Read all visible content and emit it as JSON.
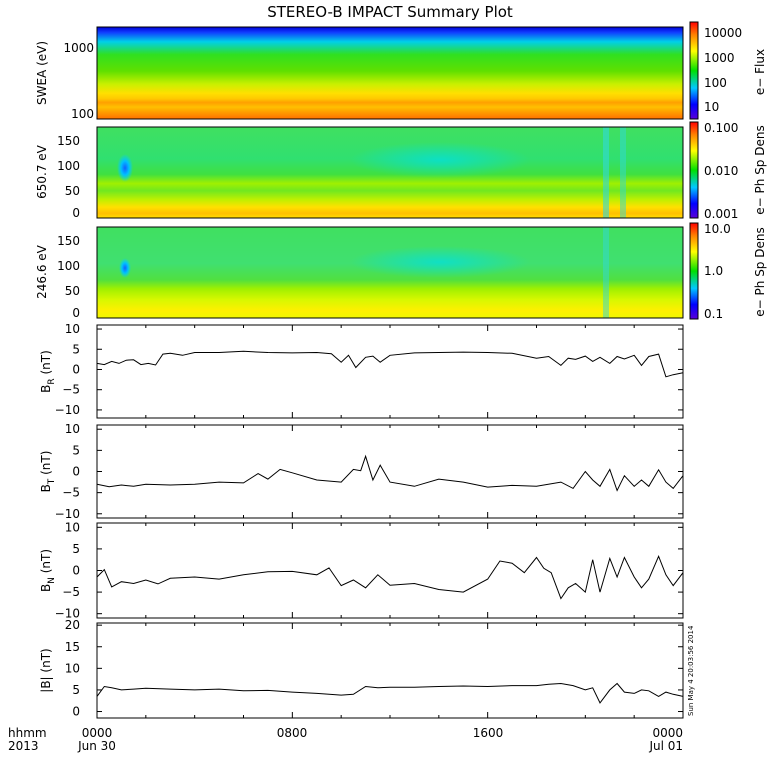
{
  "title": "STEREO-B IMPACT Summary Plot",
  "footer": {
    "left_top": "hhmm",
    "left_bottom": "2013",
    "x_ticks": [
      {
        "top": "0000",
        "bottom": "Jun 30"
      },
      {
        "top": "0800",
        "bottom": ""
      },
      {
        "top": "1600",
        "bottom": ""
      },
      {
        "top": "0000",
        "bottom": "Jul 01"
      }
    ]
  },
  "stamp": "Sun May  4 20:03:56 2014",
  "chart_data": [
    {
      "type": "heatmap",
      "ylabel": "SWEA (eV)",
      "yscale": "log",
      "yticks": [
        "1000",
        "100"
      ],
      "colorbar": {
        "label": "e− Flux",
        "scale": "log",
        "ticks": [
          "10000",
          "1000",
          "100",
          "10"
        ],
        "range": [
          3,
          20000
        ]
      }
    },
    {
      "type": "heatmap",
      "ylabel": "650.7 eV",
      "ylim": [
        0,
        180
      ],
      "yticks": [
        "0",
        "50",
        "100",
        "150"
      ],
      "colorbar": {
        "label": "e− Ph Sp Dens",
        "scale": "log",
        "ticks": [
          "0.100",
          "0.010",
          "0.001"
        ],
        "range": [
          0.001,
          0.1
        ]
      }
    },
    {
      "type": "heatmap",
      "ylabel": "246.6 eV",
      "ylim": [
        0,
        180
      ],
      "yticks": [
        "0",
        "50",
        "100",
        "150"
      ],
      "colorbar": {
        "label": "e− Ph Sp Dens",
        "scale": "log",
        "ticks": [
          "10.0",
          "1.0",
          "0.1"
        ],
        "range": [
          0.1,
          10
        ]
      }
    },
    {
      "type": "line",
      "ylabel_main": "B",
      "ylabel_sub": "R",
      "ylabel_unit": " (nT)",
      "ylim": [
        -12,
        11
      ],
      "yticks": [
        "10",
        "5",
        "0",
        "−5",
        "−10"
      ],
      "xlim_hours": [
        0,
        24
      ],
      "x": [
        0,
        0.3,
        0.6,
        0.9,
        1.2,
        1.5,
        1.8,
        2.1,
        2.4,
        2.7,
        3.0,
        3.5,
        4,
        5,
        6,
        7,
        8,
        9,
        9.6,
        10,
        10.3,
        10.6,
        11,
        11.3,
        11.6,
        12,
        13,
        14,
        15,
        16,
        17,
        18,
        18.5,
        19,
        19.3,
        19.6,
        20,
        20.3,
        20.6,
        21,
        21.3,
        21.6,
        22,
        22.3,
        22.6,
        23,
        23.3,
        23.6,
        24
      ],
      "values": [
        1.5,
        1.2,
        2,
        1.5,
        2.3,
        2.4,
        1.2,
        1.5,
        1.1,
        3.8,
        4.0,
        3.5,
        4.2,
        4.2,
        4.5,
        4.2,
        4.1,
        4.2,
        3.9,
        1.8,
        3.5,
        0.5,
        3.0,
        3.3,
        1.8,
        3.5,
        4.1,
        4.2,
        4.3,
        4.2,
        4.0,
        2.8,
        3.2,
        1.0,
        2.8,
        2.5,
        3.3,
        2.0,
        3.0,
        1.5,
        3.2,
        2.6,
        3.5,
        1.0,
        3.2,
        3.8,
        -1.8,
        -1.3,
        -0.8
      ]
    },
    {
      "type": "line",
      "ylabel_main": "B",
      "ylabel_sub": "T",
      "ylabel_unit": " (nT)",
      "ylim": [
        -11,
        11
      ],
      "yticks": [
        "10",
        "5",
        "0",
        "−5",
        "−10"
      ],
      "xlim_hours": [
        0,
        24
      ],
      "x": [
        0,
        0.5,
        1,
        1.5,
        2,
        3,
        4,
        5,
        6,
        6.6,
        7,
        7.5,
        8,
        9,
        10,
        10.5,
        10.8,
        11,
        11.3,
        11.6,
        12,
        13,
        14,
        15,
        16,
        17,
        18,
        19,
        19.5,
        20,
        20.3,
        20.6,
        21,
        21.3,
        21.6,
        22,
        22.3,
        22.6,
        23,
        23.3,
        23.6,
        24
      ],
      "values": [
        -3,
        -3.6,
        -3.2,
        -3.5,
        -3,
        -3.2,
        -3,
        -2.5,
        -2.7,
        -0.5,
        -1.8,
        0.5,
        -0.3,
        -2.0,
        -2.5,
        0.5,
        0.2,
        3.6,
        -2.0,
        1.5,
        -2.5,
        -3.5,
        -1.8,
        -2.5,
        -3.7,
        -3.3,
        -3.5,
        -2.5,
        -4.0,
        0,
        -2.0,
        -3.5,
        0.5,
        -4.5,
        -1.0,
        -3.5,
        -2.0,
        -3.5,
        0.4,
        -2.5,
        -4.0,
        -1.0
      ]
    },
    {
      "type": "line",
      "ylabel_main": "B",
      "ylabel_sub": "N",
      "ylabel_unit": " (nT)",
      "ylim": [
        -11,
        11
      ],
      "yticks": [
        "10",
        "5",
        "0",
        "−5",
        "−10"
      ],
      "xlim_hours": [
        0,
        24
      ],
      "x": [
        0,
        0.3,
        0.6,
        1,
        1.5,
        2,
        2.5,
        3,
        4,
        5,
        6,
        7,
        8,
        9,
        9.5,
        10,
        10.5,
        11,
        11.5,
        12,
        13,
        14,
        15,
        16,
        16.5,
        17,
        17.5,
        18,
        18.3,
        18.6,
        19,
        19.3,
        19.6,
        20,
        20.3,
        20.6,
        21,
        21.3,
        21.6,
        22,
        22.3,
        22.6,
        23,
        23.3,
        23.6,
        24
      ],
      "values": [
        -1.5,
        0.2,
        -3.8,
        -2.6,
        -3.0,
        -2.2,
        -3.1,
        -1.8,
        -1.5,
        -2.0,
        -1.0,
        -0.3,
        -0.2,
        -1.0,
        0.6,
        -3.5,
        -2.2,
        -4.0,
        -1.0,
        -3.4,
        -3.0,
        -4.4,
        -5.0,
        -2.0,
        2.2,
        1.7,
        -0.5,
        3.0,
        0.5,
        -0.5,
        -6.5,
        -4.0,
        -3.0,
        -5.0,
        2.5,
        -5.0,
        2.8,
        -1.5,
        3.0,
        -1.5,
        -4.0,
        -2.0,
        3.3,
        -1.0,
        -3.5,
        -0.5
      ]
    },
    {
      "type": "line",
      "ylabel_main": "|B|",
      "ylabel_sub": "",
      "ylabel_unit": " (nT)",
      "ylim": [
        -1.5,
        20.5
      ],
      "yticks": [
        "20",
        "15",
        "10",
        "5",
        "0"
      ],
      "xlim_hours": [
        0,
        24
      ],
      "x": [
        0,
        0.3,
        0.6,
        1,
        1.5,
        2,
        3,
        4,
        5,
        6,
        7,
        8,
        9,
        10,
        10.5,
        11,
        11.5,
        12,
        13,
        14,
        15,
        16,
        17,
        18,
        18.5,
        19,
        19.5,
        20,
        20.3,
        20.6,
        21,
        21.3,
        21.6,
        22,
        22.3,
        22.6,
        23,
        23.3,
        23.6,
        24
      ],
      "values": [
        3.5,
        5.8,
        5.5,
        5.0,
        5.2,
        5.4,
        5.2,
        5.0,
        5.2,
        4.8,
        4.9,
        4.5,
        4.2,
        3.8,
        4.0,
        5.8,
        5.5,
        5.6,
        5.6,
        5.8,
        5.9,
        5.8,
        6.0,
        6.0,
        6.3,
        6.5,
        6.0,
        5.0,
        5.5,
        2.0,
        5.0,
        6.5,
        4.5,
        4.2,
        5.0,
        4.8,
        3.5,
        4.5,
        4.0,
        3.5
      ]
    }
  ]
}
